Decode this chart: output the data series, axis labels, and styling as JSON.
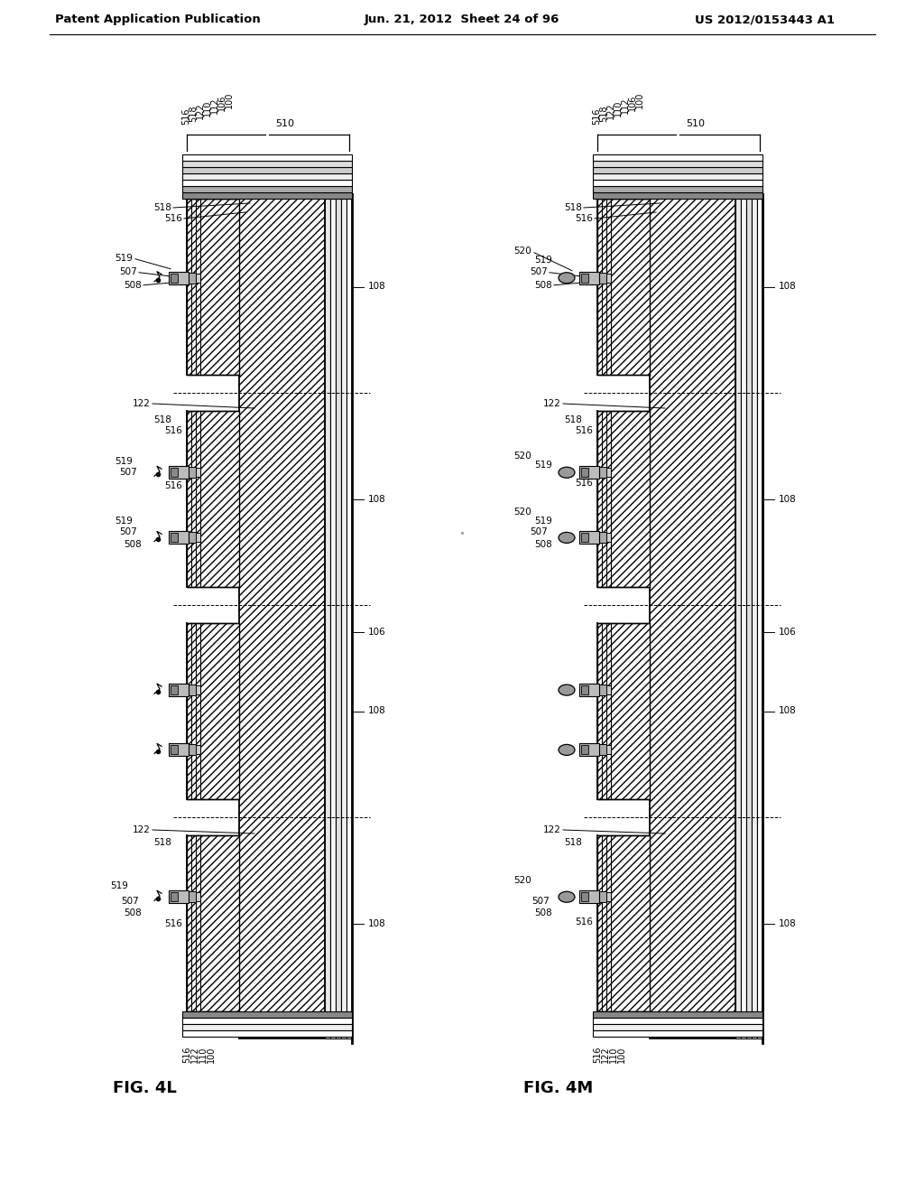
{
  "bg_color": "#ffffff",
  "header_left": "Patent Application Publication",
  "header_mid": "Jun. 21, 2012  Sheet 24 of 96",
  "header_right": "US 2012/0153443 A1",
  "fig_left_label": "FIG. 4L",
  "fig_right_label": "FIG. 4M"
}
